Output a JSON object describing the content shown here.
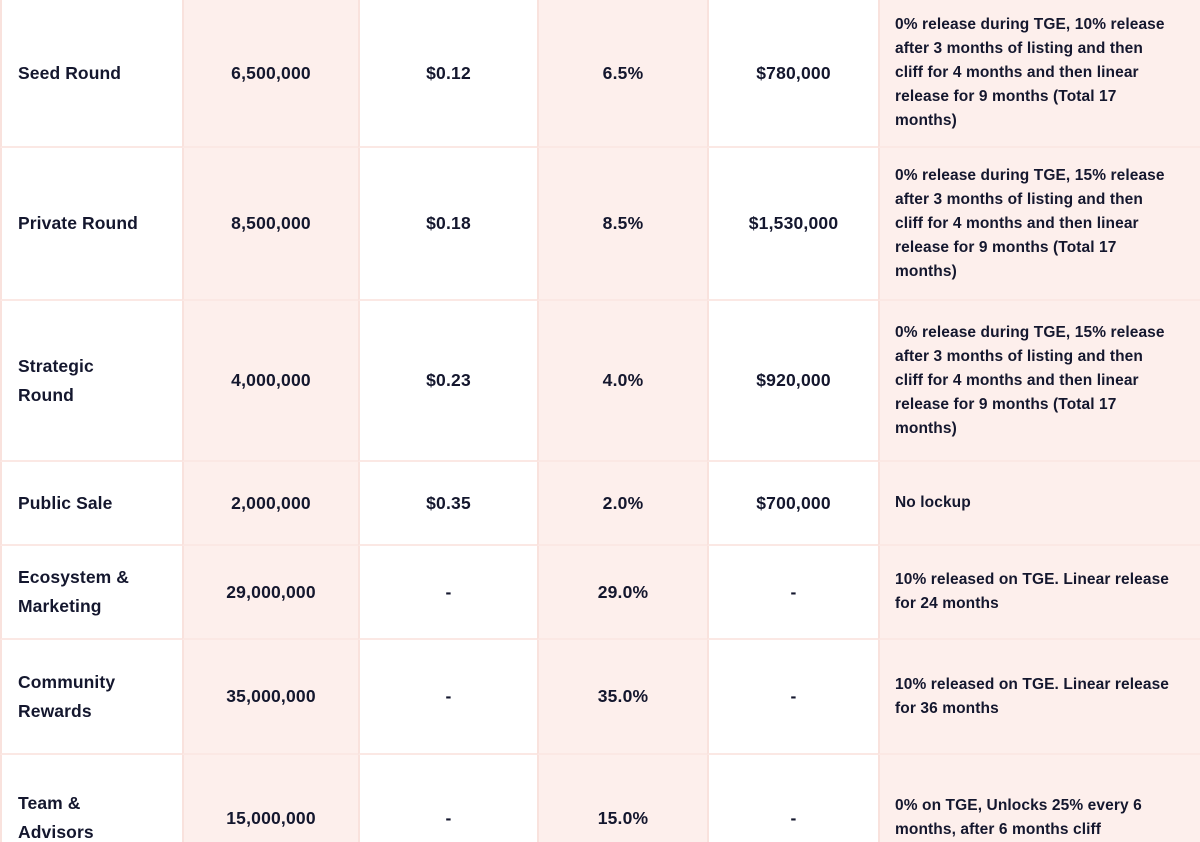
{
  "colors": {
    "cell_pink": "#fdefec",
    "grid_line_vertical": "#f9e2dd",
    "grid_line_horizontal": "#fbe8e4",
    "text": "#14172e",
    "background": "#ffffff"
  },
  "chart_data": {
    "type": "table",
    "layout_hint": "tokenomics allocation table, alternating white/pink columns, no header row visible",
    "rows": [
      {
        "name": "Seed Round",
        "tokens": "6,500,000",
        "price": "$0.12",
        "percent": "6.5%",
        "raised": "$780,000",
        "vesting": "0% release during TGE, 10% release after 3 months of listing and then cliff for 4 months and then linear release for 9 months (Total 17 months)"
      },
      {
        "name": "Private Round",
        "tokens": "8,500,000",
        "price": "$0.18",
        "percent": "8.5%",
        "raised": "$1,530,000",
        "vesting": "0% release during TGE, 15% release after 3 months of listing and then cliff for 4 months and then linear release for 9 months (Total 17 months)"
      },
      {
        "name": "Strategic Round",
        "tokens": "4,000,000",
        "price": "$0.23",
        "percent": "4.0%",
        "raised": "$920,000",
        "vesting": "0% release during TGE, 15% release after 3 months of listing and then cliff for 4 months and then linear release for 9 months (Total 17 months)"
      },
      {
        "name": "Public Sale",
        "tokens": "2,000,000",
        "price": "$0.35",
        "percent": "2.0%",
        "raised": "$700,000",
        "vesting": "No lockup"
      },
      {
        "name": "Ecosystem & Marketing",
        "tokens": "29,000,000",
        "price": "-",
        "percent": "29.0%",
        "raised": "-",
        "vesting": "10% released on TGE. Linear release for 24 months"
      },
      {
        "name": "Community Rewards",
        "tokens": "35,000,000",
        "price": "-",
        "percent": "35.0%",
        "raised": "-",
        "vesting": "10% released on TGE. Linear release for 36 months"
      },
      {
        "name": "Team & Advisors",
        "tokens": "15,000,000",
        "price": "-",
        "percent": "15.0%",
        "raised": "-",
        "vesting": "0% on TGE, Unlocks 25% every 6 months, after 6 months cliff"
      }
    ]
  }
}
